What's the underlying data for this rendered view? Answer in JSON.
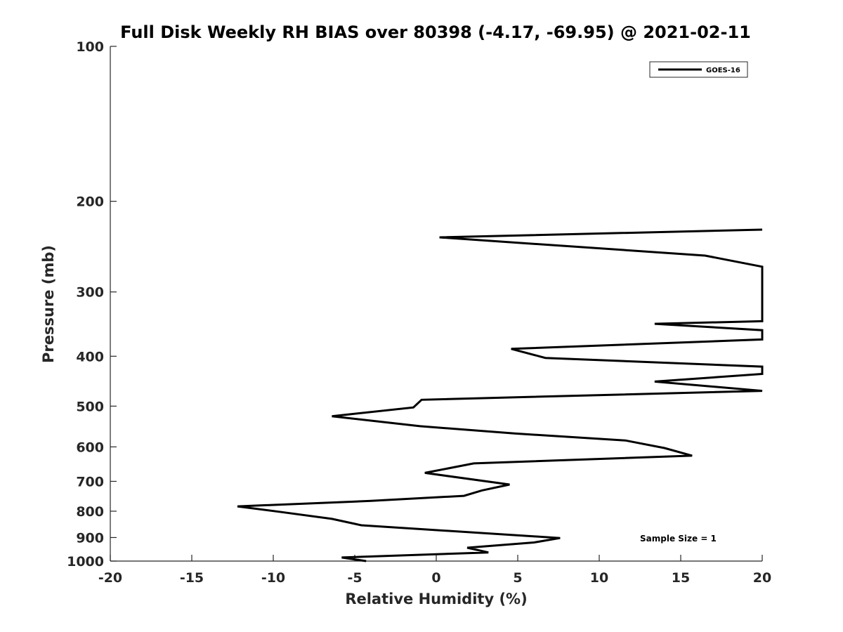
{
  "chart_data": {
    "type": "line",
    "title": "Full Disk Weekly RH BIAS over 80398 (-4.17, -69.95) @ 2021-02-11",
    "xlabel": "Relative Humidity (%)",
    "ylabel": "Pressure (mb)",
    "xlim": [
      -20,
      20
    ],
    "ylim": [
      1000,
      100
    ],
    "y_scale": "log",
    "y_reversed": true,
    "grid": false,
    "legend_position": "top-right",
    "x_ticks": [
      "-20",
      "-15",
      "-10",
      "-5",
      "0",
      "5",
      "10",
      "15",
      "20"
    ],
    "y_ticks": [
      "100",
      "200",
      "300",
      "400",
      "500",
      "600",
      "700",
      "800",
      "900",
      "1000"
    ],
    "series": [
      {
        "name": "GOES-16",
        "color": "#000000",
        "points": [
          [
            -4.3,
            1000
          ],
          [
            -5.8,
            984
          ],
          [
            3.2,
            962
          ],
          [
            1.9,
            942
          ],
          [
            6.0,
            920
          ],
          [
            7.6,
            902
          ],
          [
            -4.6,
            852
          ],
          [
            -6.4,
            828
          ],
          [
            -9.5,
            803
          ],
          [
            -12.2,
            783
          ],
          [
            -4.0,
            764
          ],
          [
            1.7,
            747
          ],
          [
            2.8,
            729
          ],
          [
            4.5,
            710
          ],
          [
            -0.7,
            674
          ],
          [
            2.3,
            646
          ],
          [
            15.7,
            624
          ],
          [
            14.0,
            603
          ],
          [
            11.6,
            583
          ],
          [
            4.8,
            565
          ],
          [
            -1.0,
            547
          ],
          [
            -6.4,
            523
          ],
          [
            -1.4,
            503
          ],
          [
            -0.9,
            486
          ],
          [
            20,
            467
          ],
          [
            13.4,
            448
          ],
          [
            20,
            433
          ],
          [
            20,
            419
          ],
          [
            6.7,
            403
          ],
          [
            4.6,
            387
          ],
          [
            20,
            371
          ],
          [
            20,
            356
          ],
          [
            13.4,
            346
          ],
          [
            20,
            342
          ],
          [
            20,
            268
          ],
          [
            16.5,
            255
          ],
          [
            0.2,
            235
          ],
          [
            20,
            227
          ]
        ]
      }
    ],
    "annotations": [
      {
        "text": "Sample Size = 1",
        "x": 15.5,
        "y": 900
      }
    ]
  }
}
